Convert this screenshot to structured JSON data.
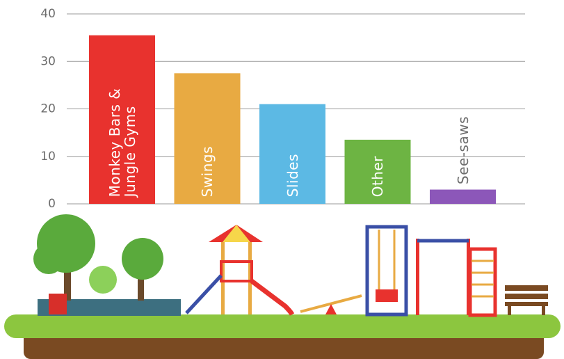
{
  "chart_data": {
    "type": "bar",
    "categories": [
      "Monkey Bars & Jungle Gyms",
      "Swings",
      "Slides",
      "Other",
      "See-saws"
    ],
    "series": [
      {
        "values": [
          35.5,
          27.5,
          21,
          13.5,
          3
        ],
        "colors": [
          "#e8322e",
          "#e8aa42",
          "#5cb9e4",
          "#6db443",
          "#8c57b9"
        ]
      }
    ],
    "ylim": [
      0,
      40
    ],
    "yticks": [
      0,
      10,
      20,
      30,
      40
    ],
    "grid": true
  }
}
